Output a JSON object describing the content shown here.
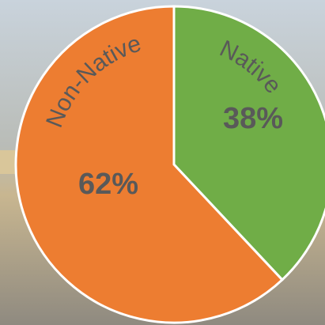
{
  "chart_data": {
    "type": "pie",
    "categories": [
      "Native",
      "Non-Native"
    ],
    "values": [
      38,
      62
    ],
    "value_labels": [
      "38%",
      "62%"
    ],
    "colors": [
      "#70ad47",
      "#ed7d31"
    ]
  }
}
